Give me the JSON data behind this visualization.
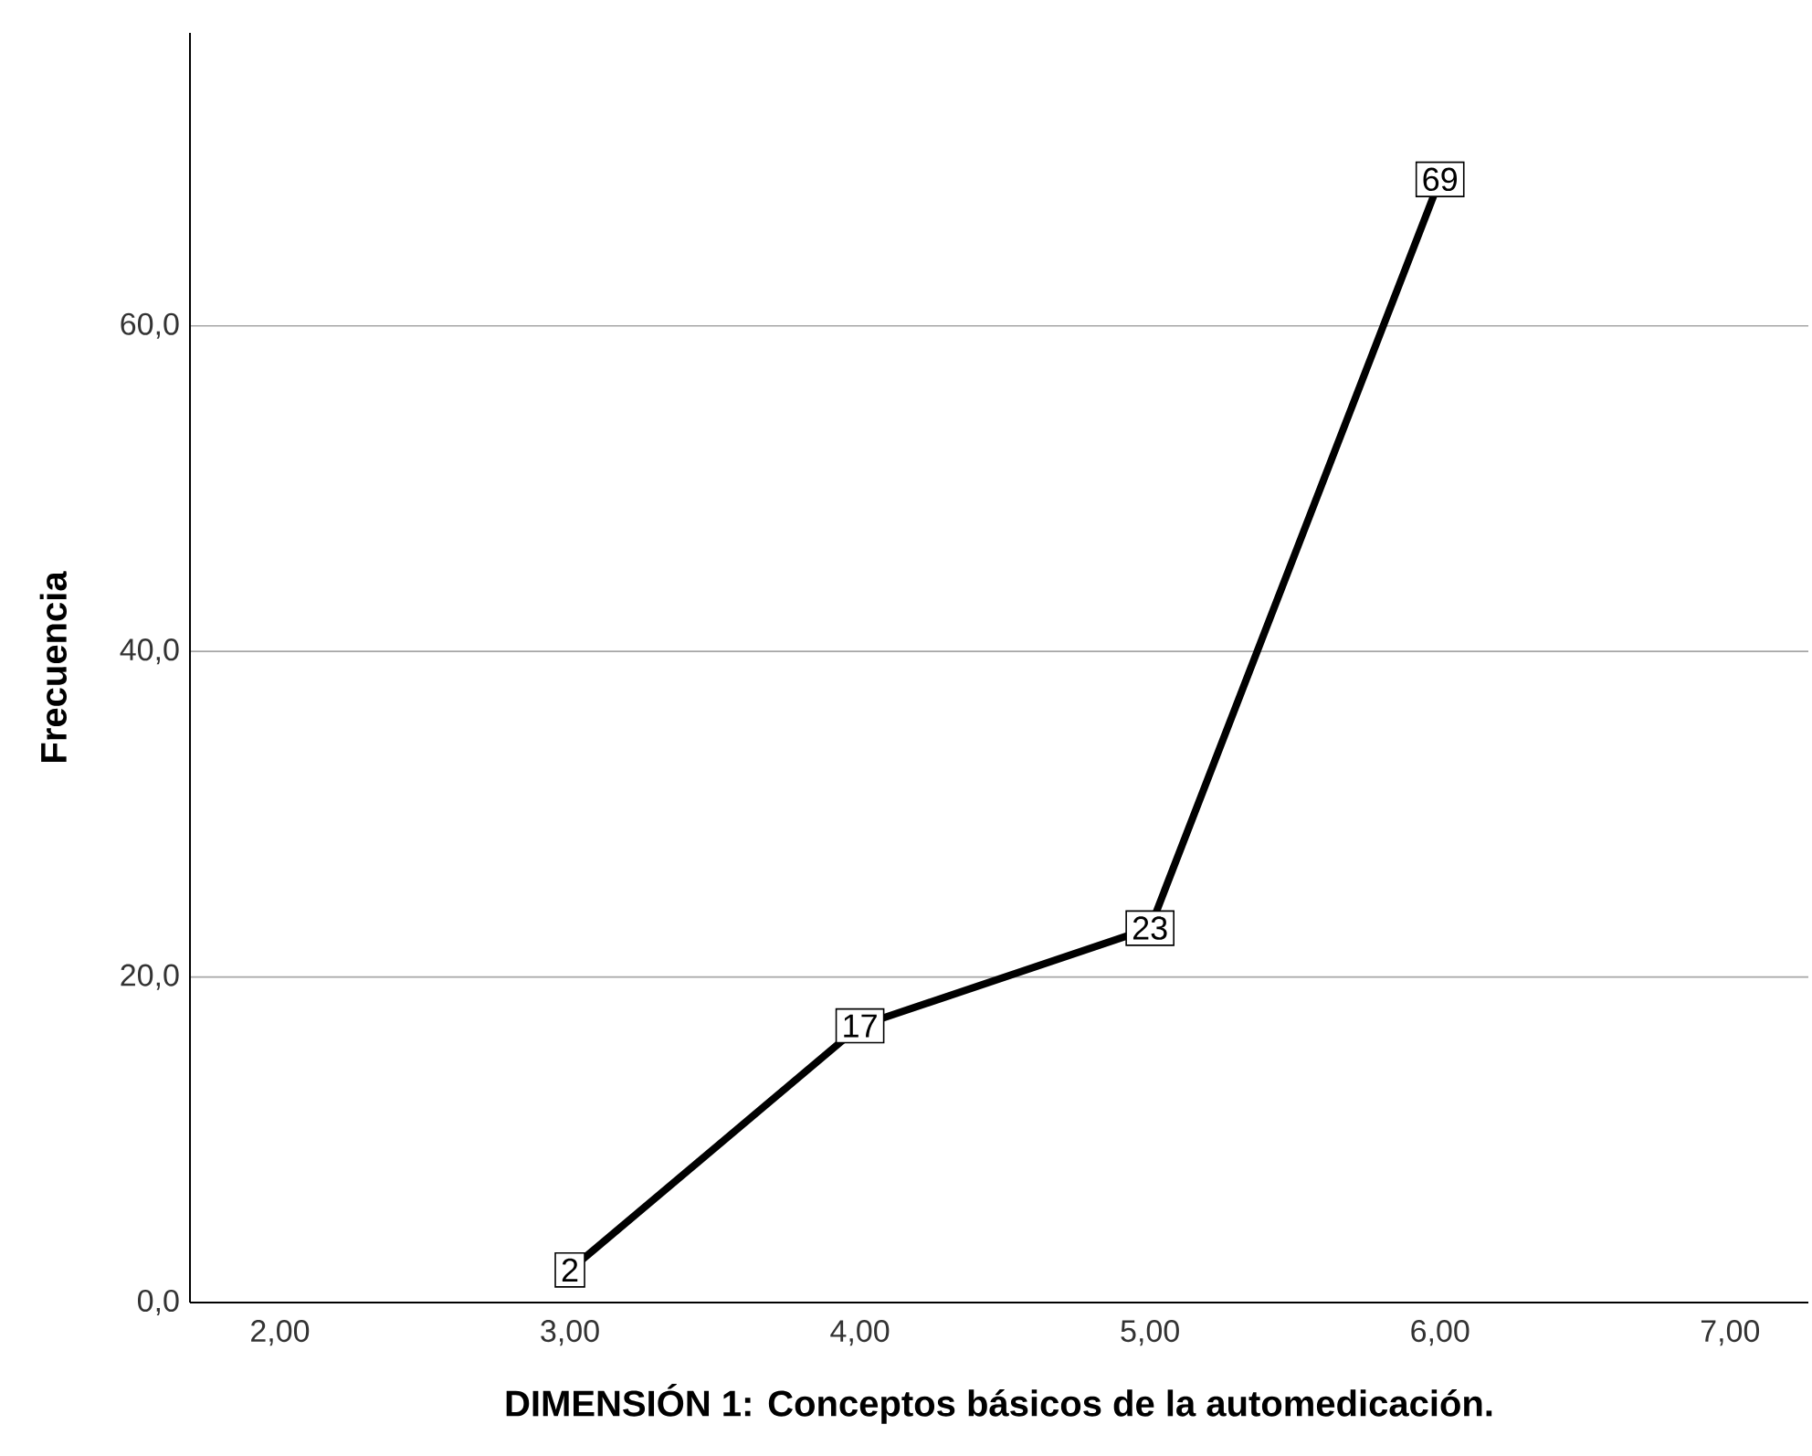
{
  "chart_data": {
    "type": "line",
    "xlabel": "DIMENSIÓN 1: Conceptos básicos de la automedicación.",
    "ylabel": "Frecuencia",
    "x": [
      3,
      4,
      5,
      6
    ],
    "values": [
      2,
      17,
      23,
      69
    ],
    "color": "#000000",
    "xlim": [
      1.69,
      7.27
    ],
    "ylim": [
      0,
      78
    ],
    "xticks": [
      {
        "value": 2,
        "label": "2,00"
      },
      {
        "value": 3,
        "label": "3,00"
      },
      {
        "value": 4,
        "label": "4,00"
      },
      {
        "value": 5,
        "label": "5,00"
      },
      {
        "value": 6,
        "label": "6,00"
      },
      {
        "value": 7,
        "label": "7,00"
      }
    ],
    "yticks": [
      {
        "value": 0,
        "label": "0,0"
      },
      {
        "value": 20,
        "label": "20,0"
      },
      {
        "value": 40,
        "label": "40,0"
      },
      {
        "value": 60,
        "label": "60,0"
      }
    ],
    "grid": "y",
    "data_labels": true,
    "marker": "square",
    "line_style": "solid"
  }
}
